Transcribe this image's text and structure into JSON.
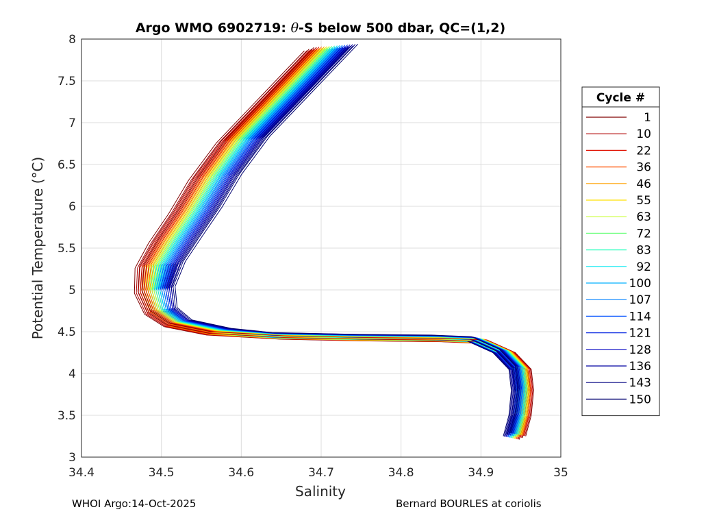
{
  "chart_data": {
    "type": "line",
    "title_prefix": "Argo WMO 6902719: ",
    "title_theta": "θ",
    "title_suffix": "-S below 500 dbar,  QC=(1,2)",
    "xlabel": "Salinity",
    "ylabel": "Potential Temperature (°C)",
    "xlim": [
      34.4,
      35
    ],
    "ylim": [
      3,
      8
    ],
    "xticks": [
      "34.4",
      "34.5",
      "34.6",
      "34.7",
      "34.8",
      "34.9",
      "35"
    ],
    "yticks": [
      "3",
      "3.5",
      "4",
      "4.5",
      "5",
      "5.5",
      "6",
      "6.5",
      "7",
      "7.5",
      "8"
    ],
    "grid": true,
    "legend": {
      "title": "Cycle #",
      "placement": "right",
      "entries": [
        {
          "label": "1",
          "color": "#800000"
        },
        {
          "label": "10",
          "color": "#b00000"
        },
        {
          "label": "22",
          "color": "#e01000"
        },
        {
          "label": "36",
          "color": "#ff5000"
        },
        {
          "label": "46",
          "color": "#ffa000"
        },
        {
          "label": "55",
          "color": "#ffe000"
        },
        {
          "label": "63",
          "color": "#c8ff30"
        },
        {
          "label": "72",
          "color": "#70ff80"
        },
        {
          "label": "83",
          "color": "#30ffc0"
        },
        {
          "label": "92",
          "color": "#00e8f0"
        },
        {
          "label": "100",
          "color": "#00b0ff"
        },
        {
          "label": "107",
          "color": "#0080ff"
        },
        {
          "label": "114",
          "color": "#0050ff"
        },
        {
          "label": "121",
          "color": "#0020e0"
        },
        {
          "label": "128",
          "color": "#0000c0"
        },
        {
          "label": "136",
          "color": "#0000a0"
        },
        {
          "label": "143",
          "color": "#000080"
        },
        {
          "label": "150",
          "color": "#000070"
        }
      ]
    },
    "representative_profile_salinity": [
      34.73,
      34.67,
      34.62,
      34.585,
      34.56,
      34.535,
      34.515,
      34.505,
      34.51,
      34.53,
      34.58,
      34.65,
      34.75,
      34.85,
      34.9,
      34.935,
      34.955,
      34.958,
      34.955,
      34.948
    ],
    "representative_profile_temperature": [
      7.9,
      7.3,
      6.8,
      6.35,
      5.95,
      5.6,
      5.3,
      5.0,
      4.75,
      4.6,
      4.5,
      4.45,
      4.43,
      4.42,
      4.4,
      4.25,
      4.05,
      3.8,
      3.5,
      3.25
    ]
  },
  "footer": {
    "left": "WHOI Argo:14-Oct-2025",
    "right": "Bernard BOURLES at coriolis"
  }
}
